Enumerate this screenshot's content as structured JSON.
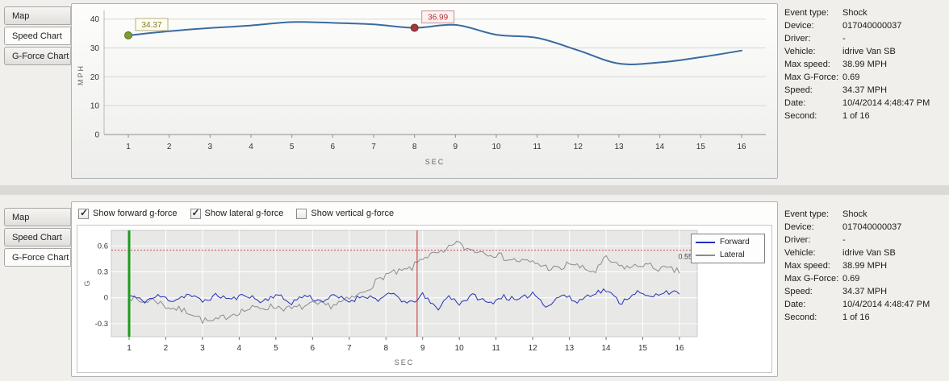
{
  "window": {
    "background": "#dcdad6",
    "panel_background": "#f1efeb"
  },
  "tabs": {
    "items": [
      "Map",
      "Speed Chart",
      "G-Force Chart"
    ]
  },
  "top_panel": {
    "active_tab": "Speed Chart"
  },
  "bottom_panel": {
    "active_tab": "G-Force Chart"
  },
  "info": {
    "rows": [
      {
        "label": "Event type:",
        "value": "Shock"
      },
      {
        "label": "Device:",
        "value": "017040000037"
      },
      {
        "label": "Driver:",
        "value": "-"
      },
      {
        "label": "Vehicle:",
        "value": "idrive Van SB"
      },
      {
        "label": "Max speed:",
        "value": "38.99 MPH"
      },
      {
        "label": "Max G-Force:",
        "value": "0.69"
      },
      {
        "label": "Speed:",
        "value": "34.37 MPH"
      },
      {
        "label": "Date:",
        "value": "10/4/2014 4:48:47 PM"
      },
      {
        "label": "Second:",
        "value": "1 of 16"
      }
    ]
  },
  "gforce_controls": {
    "checkboxes": [
      {
        "label": "Show forward g-force",
        "checked": true
      },
      {
        "label": "Show lateral g-force",
        "checked": true
      },
      {
        "label": "Show vertical g-force",
        "checked": false
      }
    ]
  },
  "chart_data": [
    {
      "type": "line",
      "title": "Speed Chart",
      "xlabel": "SEC",
      "ylabel": "MPH",
      "x": [
        1,
        2,
        3,
        4,
        5,
        6,
        7,
        8,
        9,
        10,
        11,
        12,
        13,
        14,
        15,
        16
      ],
      "ylim": [
        0,
        43
      ],
      "yticks": [
        0,
        10,
        20,
        30,
        40
      ],
      "grid": "horizontal",
      "series": [
        {
          "name": "Speed",
          "color": "#3a6b9f",
          "values": [
            34.37,
            35.8,
            36.9,
            37.8,
            38.99,
            38.7,
            38.2,
            36.99,
            38.0,
            34.6,
            33.5,
            29.2,
            24.6,
            25.0,
            26.8,
            29.1
          ]
        }
      ],
      "annotations": [
        {
          "x": 1,
          "y": 34.37,
          "label": "34.37",
          "marker_color": "#7d9b31",
          "marker_stroke": "#5d7522",
          "text_color": "#827c1f",
          "box_fill": "#fdfcf0",
          "box_border": "#b5b084"
        },
        {
          "x": 8,
          "y": 36.99,
          "label": "36.99",
          "marker_color": "#9e3b38",
          "marker_stroke": "#76292a",
          "text_color": "#b03030",
          "box_fill": "#fdf2f2",
          "box_border": "#c79090"
        }
      ]
    },
    {
      "type": "line",
      "title": "G-Force Chart",
      "xlabel": "SEC",
      "ylabel": "G",
      "xticks": [
        1,
        2,
        3,
        4,
        5,
        6,
        7,
        8,
        9,
        10,
        11,
        12,
        13,
        14,
        15,
        16
      ],
      "ylim": [
        -0.45,
        0.78
      ],
      "yticks": [
        -0.3,
        0,
        0.3,
        0.6
      ],
      "grid": "both",
      "plot_background": "#e8e8e7",
      "legend": [
        "Forward",
        "Lateral"
      ],
      "legend_position": "right-top",
      "threshold_line": {
        "y": 0.55,
        "label": "0.55",
        "color": "#d04a4a",
        "style": "dotted"
      },
      "event_markers": [
        {
          "x": 1,
          "color": "#1e9b1e",
          "width": 3
        },
        {
          "x": 8.85,
          "color": "#cc2a2a",
          "width": 1
        }
      ],
      "samples_per_sec": 14,
      "series": [
        {
          "name": "Forward",
          "color": "#2333b8",
          "noise": 0.03,
          "seed": 11,
          "keyframes": [
            [
              1,
              0.03
            ],
            [
              1.4,
              -0.04
            ],
            [
              1.8,
              0.02
            ],
            [
              2.2,
              -0.03
            ],
            [
              2.6,
              0.04
            ],
            [
              3,
              -0.04
            ],
            [
              3.4,
              0.03
            ],
            [
              3.8,
              -0.02
            ],
            [
              4.2,
              0.04
            ],
            [
              4.6,
              -0.05
            ],
            [
              5,
              0.04
            ],
            [
              5.4,
              -0.06
            ],
            [
              5.8,
              0.03
            ],
            [
              6.2,
              -0.04
            ],
            [
              6.6,
              0.02
            ],
            [
              7,
              -0.04
            ],
            [
              7.4,
              0.03
            ],
            [
              7.8,
              -0.02
            ],
            [
              8.2,
              0.05
            ],
            [
              8.6,
              -0.08
            ],
            [
              9,
              0.03
            ],
            [
              9.4,
              -0.13
            ],
            [
              9.7,
              0.02
            ],
            [
              10,
              -0.06
            ],
            [
              10.4,
              0.03
            ],
            [
              10.8,
              -0.07
            ],
            [
              11.2,
              0.02
            ],
            [
              11.6,
              -0.04
            ],
            [
              12,
              0.06
            ],
            [
              12.4,
              -0.1
            ],
            [
              12.8,
              0.04
            ],
            [
              13.2,
              -0.05
            ],
            [
              13.6,
              0.05
            ],
            [
              14,
              0.09
            ],
            [
              14.4,
              -0.06
            ],
            [
              14.8,
              0.07
            ],
            [
              15.2,
              0.0
            ],
            [
              15.6,
              0.08
            ],
            [
              16,
              0.04
            ]
          ]
        },
        {
          "name": "Lateral",
          "color": "#8c8c8c",
          "noise": 0.04,
          "seed": 7,
          "keyframes": [
            [
              1,
              0.02
            ],
            [
              1.3,
              -0.05
            ],
            [
              1.7,
              -0.02
            ],
            [
              2,
              -0.1
            ],
            [
              2.3,
              -0.13
            ],
            [
              2.7,
              -0.17
            ],
            [
              3,
              -0.26
            ],
            [
              3.3,
              -0.28
            ],
            [
              3.6,
              -0.22
            ],
            [
              4,
              -0.16
            ],
            [
              4.4,
              -0.12
            ],
            [
              5,
              -0.1
            ],
            [
              5.4,
              -0.13
            ],
            [
              6,
              -0.08
            ],
            [
              6.5,
              -0.09
            ],
            [
              7,
              -0.02
            ],
            [
              7.3,
              0.04
            ],
            [
              7.6,
              0.14
            ],
            [
              8,
              0.27
            ],
            [
              8.4,
              0.3
            ],
            [
              8.7,
              0.34
            ],
            [
              9,
              0.47
            ],
            [
              9.3,
              0.5
            ],
            [
              9.6,
              0.52
            ],
            [
              9.9,
              0.66
            ],
            [
              10.1,
              0.58
            ],
            [
              10.4,
              0.55
            ],
            [
              10.7,
              0.53
            ],
            [
              11,
              0.5
            ],
            [
              11.4,
              0.44
            ],
            [
              11.8,
              0.42
            ],
            [
              12.1,
              0.4
            ],
            [
              12.4,
              0.35
            ],
            [
              12.8,
              0.33
            ],
            [
              13,
              0.41
            ],
            [
              13.4,
              0.33
            ],
            [
              13.7,
              0.3
            ],
            [
              14,
              0.46
            ],
            [
              14.3,
              0.37
            ],
            [
              14.7,
              0.35
            ],
            [
              15,
              0.39
            ],
            [
              15.4,
              0.34
            ],
            [
              15.7,
              0.33
            ],
            [
              16,
              0.3
            ]
          ]
        }
      ]
    }
  ]
}
